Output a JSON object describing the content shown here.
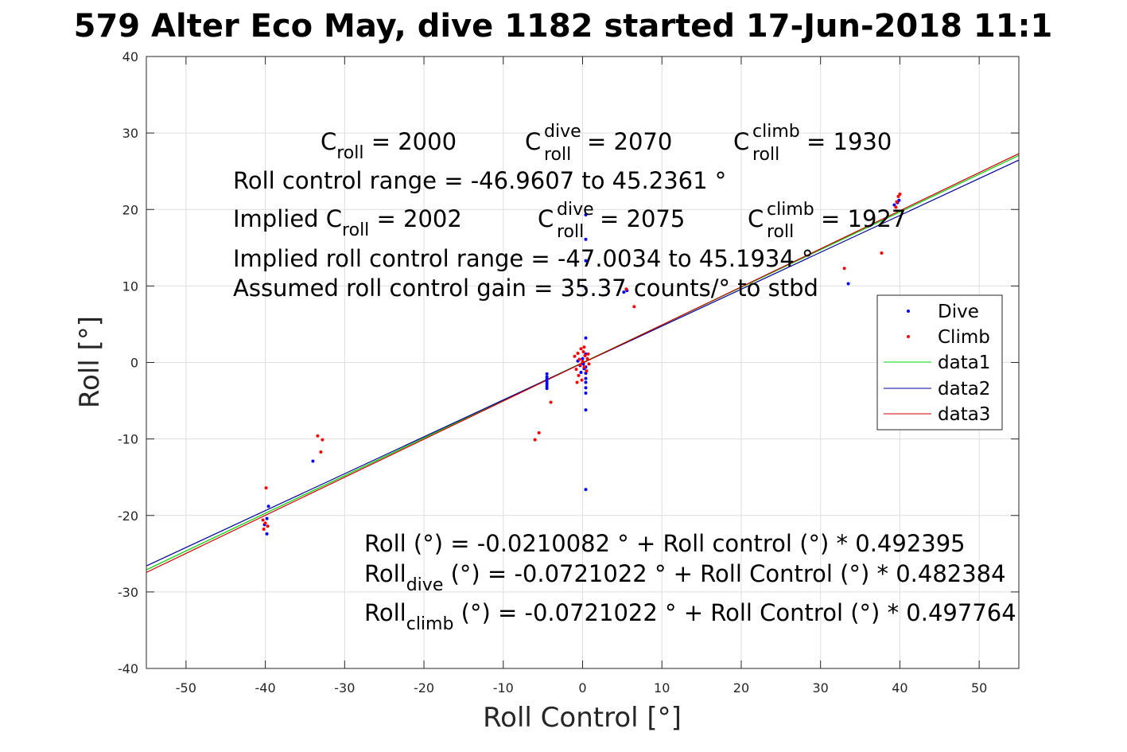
{
  "title": "579 Alter Eco May, dive 1182 started 17-Jun-2018 11:1",
  "chart_data": {
    "type": "scatter",
    "xlabel": "Roll Control [°]",
    "ylabel": "Roll [°]",
    "xlim": [
      -55,
      55
    ],
    "ylim": [
      -40,
      40
    ],
    "xticks": [
      -50,
      -40,
      -30,
      -20,
      -10,
      0,
      10,
      20,
      30,
      40,
      50
    ],
    "xtick_labels": [
      "-50",
      "-40",
      "-30",
      "-20",
      "-10",
      "0",
      "10",
      "20",
      "30",
      "40",
      "50"
    ],
    "yticks": [
      -40,
      -30,
      -20,
      -10,
      0,
      10,
      20,
      30,
      40
    ],
    "ytick_labels": [
      "-40",
      "-30",
      "-20",
      "-10",
      "0",
      "10",
      "20",
      "30",
      "40"
    ],
    "grid": true,
    "legend_position": "right",
    "series": [
      {
        "name": "Dive",
        "kind": "points",
        "color": "#0000ff",
        "points": [
          [
            -39.6,
            -18.8
          ],
          [
            -39.8,
            -20.4
          ],
          [
            -40.1,
            -21.2
          ],
          [
            -39.8,
            -22.4
          ],
          [
            -34.0,
            -12.9
          ],
          [
            -4.5,
            -1.5
          ],
          [
            -4.5,
            -1.9
          ],
          [
            -4.5,
            -2.2
          ],
          [
            -4.5,
            -2.5
          ],
          [
            -4.5,
            -2.8
          ],
          [
            -4.5,
            -3.1
          ],
          [
            -4.5,
            -3.4
          ],
          [
            -0.6,
            0.2
          ],
          [
            -0.3,
            -0.4
          ],
          [
            0.0,
            0.5
          ],
          [
            0.2,
            -0.8
          ],
          [
            0.3,
            0.9
          ],
          [
            -0.2,
            -1.3
          ],
          [
            0.1,
            -0.2
          ],
          [
            0.4,
            19.3
          ],
          [
            0.4,
            16.1
          ],
          [
            0.4,
            13.3
          ],
          [
            0.4,
            9.7
          ],
          [
            0.4,
            3.2
          ],
          [
            0.4,
            1.1
          ],
          [
            0.4,
            -0.6
          ],
          [
            0.4,
            -1.4
          ],
          [
            0.4,
            -2.1
          ],
          [
            0.4,
            -2.6
          ],
          [
            0.4,
            -3.3
          ],
          [
            0.4,
            -4.0
          ],
          [
            0.4,
            -6.2
          ],
          [
            0.4,
            -16.6
          ],
          [
            5.2,
            9.2
          ],
          [
            5.6,
            9.4
          ],
          [
            33.5,
            10.3
          ],
          [
            39.3,
            20.6
          ],
          [
            39.7,
            20.9
          ],
          [
            39.9,
            21.2
          ]
        ]
      },
      {
        "name": "Climb",
        "kind": "points",
        "color": "#ff0000",
        "points": [
          [
            -39.9,
            -16.4
          ],
          [
            -40.3,
            -20.6
          ],
          [
            -40.0,
            -21.0
          ],
          [
            -39.7,
            -21.4
          ],
          [
            -40.2,
            -21.8
          ],
          [
            -33.4,
            -9.6
          ],
          [
            -32.8,
            -10.1
          ],
          [
            -33.0,
            -11.7
          ],
          [
            -6.0,
            -10.1
          ],
          [
            -5.5,
            -9.2
          ],
          [
            -4.0,
            -5.2
          ],
          [
            -1.0,
            0.8
          ],
          [
            -0.8,
            -0.9
          ],
          [
            -0.6,
            1.2
          ],
          [
            -0.5,
            -1.7
          ],
          [
            -0.4,
            0.4
          ],
          [
            -0.3,
            -0.3
          ],
          [
            -0.2,
            1.8
          ],
          [
            -0.1,
            -2.3
          ],
          [
            0.0,
            0.1
          ],
          [
            0.1,
            1.4
          ],
          [
            0.2,
            -0.6
          ],
          [
            0.3,
            0.9
          ],
          [
            0.5,
            -1.1
          ],
          [
            0.6,
            0.5
          ],
          [
            0.7,
            1.1
          ],
          [
            0.8,
            -0.2
          ],
          [
            -0.7,
            -2.6
          ],
          [
            0.2,
            2.0
          ],
          [
            5.5,
            9.6
          ],
          [
            6.5,
            7.3
          ],
          [
            33.0,
            12.3
          ],
          [
            37.7,
            14.3
          ],
          [
            39.5,
            20.3
          ],
          [
            39.8,
            21.7
          ],
          [
            40.0,
            22.0
          ],
          [
            39.6,
            21.0
          ]
        ]
      },
      {
        "name": "data1",
        "kind": "line",
        "color": "#00d000",
        "intercept": -0.0210082,
        "slope": 0.492395
      },
      {
        "name": "data2",
        "kind": "line",
        "color": "#000099",
        "intercept": -0.0721022,
        "slope": 0.482384
      },
      {
        "name": "data3",
        "kind": "line",
        "color": "#cc0000",
        "intercept": -0.0721022,
        "slope": 0.497764
      }
    ]
  },
  "annotations": {
    "c_roll_main": "C",
    "c_roll_sub": "roll",
    "c_roll_value": " = 2000",
    "c_dive_main": "C",
    "c_dive_sup": "dive",
    "c_dive_sub": "roll",
    "c_dive_value": " = 2070",
    "c_climb_main": "C",
    "c_climb_sup": "climb",
    "c_climb_sub": "roll",
    "c_climb_value": " = 1930",
    "range_line": "Roll control range = -46.9607 to 45.2361 °",
    "implied_main": "Implied C",
    "implied_sub": "roll",
    "implied_value": " = 2002",
    "implied_dive_main": "C",
    "implied_dive_sup": "dive",
    "implied_dive_sub": "roll",
    "implied_dive_value": " = 2075",
    "implied_climb_main": "C",
    "implied_climb_sup": "climb",
    "implied_climb_sub": "roll",
    "implied_climb_value": " = 1927",
    "implied_range_line": "Implied roll control range = -47.0034 to 45.1934 °",
    "gain_line": "Assumed roll control gain = 35.37 counts/° to stbd",
    "fit_line": "Roll (°) = -0.0210082 ° + Roll control (°) * 0.492395",
    "fit_dive_main": "Roll",
    "fit_dive_sub": "dive",
    "fit_dive_rest": " (°) = -0.0721022 ° + Roll Control (°) * 0.482384",
    "fit_climb_main": "Roll",
    "fit_climb_sub": "climb",
    "fit_climb_rest": " (°) = -0.0721022 ° + Roll Control (°) * 0.497764"
  }
}
